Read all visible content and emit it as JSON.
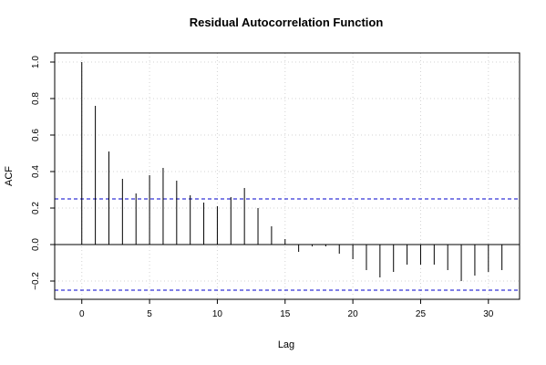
{
  "chart_data": {
    "type": "bar",
    "title": "Residual Autocorrelation Function",
    "xlabel": "Lag",
    "ylabel": "ACF",
    "xlim": [
      -2,
      32.3
    ],
    "ylim": [
      -0.3,
      1.05
    ],
    "x_ticks": [
      "0",
      "5",
      "10",
      "15",
      "20",
      "25",
      "30"
    ],
    "y_ticks": [
      "−0.2",
      "0.0",
      "0.2",
      "0.4",
      "0.6",
      "0.8",
      "1.0"
    ],
    "x": [
      0,
      1,
      2,
      3,
      4,
      5,
      6,
      7,
      8,
      9,
      10,
      11,
      12,
      13,
      14,
      15,
      16,
      17,
      18,
      19,
      20,
      21,
      22,
      23,
      24,
      25,
      26,
      27,
      28,
      29,
      30,
      31
    ],
    "values": [
      1.0,
      0.76,
      0.51,
      0.36,
      0.28,
      0.38,
      0.42,
      0.35,
      0.27,
      0.23,
      0.21,
      0.26,
      0.31,
      0.2,
      0.1,
      0.03,
      -0.04,
      -0.01,
      -0.01,
      -0.05,
      -0.08,
      -0.14,
      -0.18,
      -0.15,
      -0.11,
      -0.11,
      -0.11,
      -0.14,
      -0.2,
      -0.17,
      -0.15,
      -0.14
    ],
    "confidence_bounds": [
      0.25,
      -0.25
    ],
    "grid": true,
    "colors": {
      "bars": "#000000",
      "bounds": "#0000cc",
      "grid": "#d3d3d3",
      "zero_line": "#000000"
    }
  }
}
